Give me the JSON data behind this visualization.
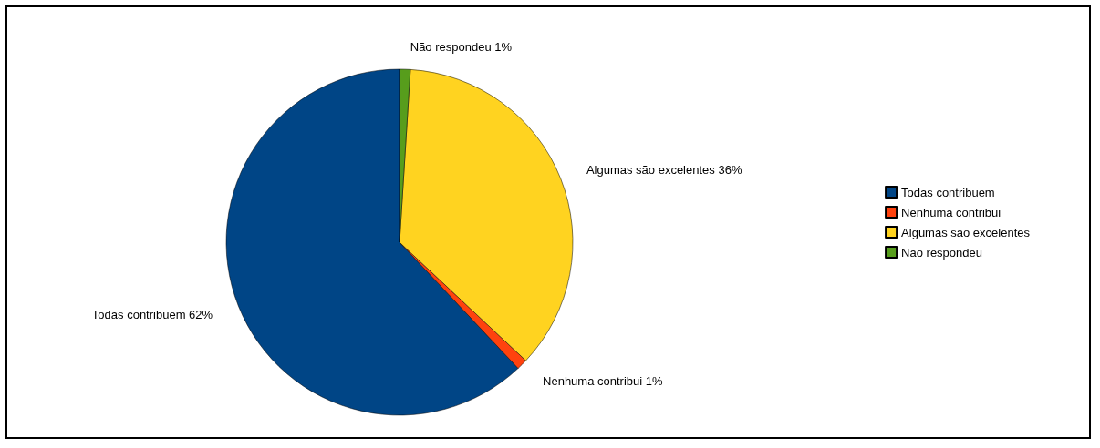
{
  "chart_data": {
    "type": "pie",
    "categories": [
      "Todas contribuem",
      "Nenhuma contribui",
      "Algumas são excelentes",
      "Não respondeu"
    ],
    "values": [
      62,
      1,
      36,
      1
    ],
    "colors": [
      "#004586",
      "#ff420e",
      "#ffd320",
      "#579d1c"
    ],
    "value_labels": [
      "Todas contribuem 62%",
      "Nenhuma contribui 1%",
      "Algumas são excelentes 36%",
      "Não respondeu 1%"
    ],
    "legend": "right"
  }
}
